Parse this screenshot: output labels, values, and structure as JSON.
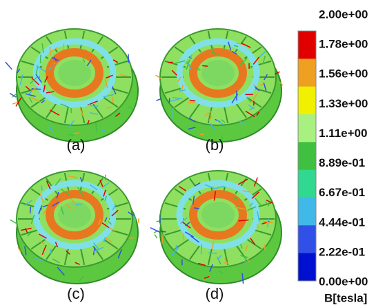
{
  "panels": [
    {
      "label": "(a)"
    },
    {
      "label": "(b)"
    },
    {
      "label": "(c)"
    },
    {
      "label": "(d)"
    }
  ],
  "legend": {
    "title": "B[tesla]",
    "labels": [
      "2.00e+00",
      "1.78e+00",
      "1.56e+00",
      "1.33e+00",
      "1.11e+00",
      "8.89e-01",
      "6.67e-01",
      "4.44e-01",
      "2.22e-01",
      "0.00e+00"
    ],
    "colors": [
      "#e00000",
      "#f0a020",
      "#f0f000",
      "#a8f080",
      "#40c040",
      "#30d890",
      "#40b8e8",
      "#3050e8",
      "#0010d0"
    ]
  }
}
